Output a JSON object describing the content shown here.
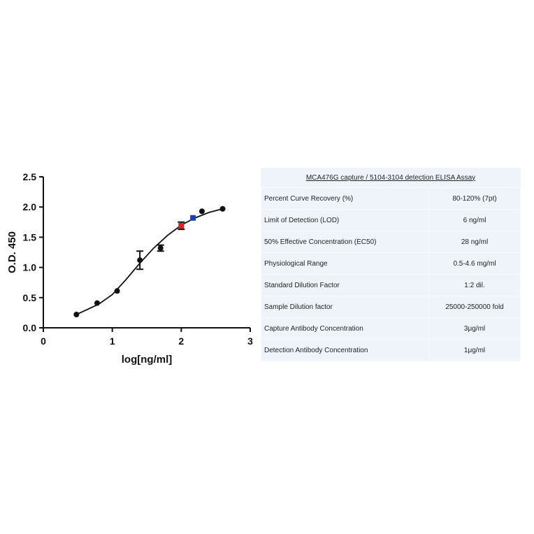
{
  "chart_data": {
    "type": "scatter",
    "xlabel": "log[ng/ml]",
    "ylabel": "O.D. 450",
    "xlim": [
      0,
      3
    ],
    "xticks": [
      0,
      1,
      2,
      3
    ],
    "ylim": [
      0,
      2.5
    ],
    "yticks": [
      {
        "value": 0,
        "label": "0.0"
      },
      0.5,
      {
        "value": 1,
        "label": "1.0"
      },
      1.5,
      {
        "value": 2,
        "label": "2.0"
      },
      2.5
    ],
    "series": [
      {
        "type": "scatter",
        "x": [
          0.48,
          0.78,
          1.07,
          1.4,
          1.7,
          2.0,
          2.17,
          2.3,
          2.6
        ],
        "y": [
          0.22,
          0.41,
          0.61,
          1.12,
          1.32,
          1.69,
          1.82,
          1.93,
          1.97
        ],
        "errors": [
          null,
          null,
          null,
          0.15,
          0.05,
          0.06,
          null,
          null,
          null
        ],
        "colors": [
          "#111111",
          "#111111",
          "#111111",
          "#111111",
          "#111111",
          "#e02020",
          "#1a3fb0",
          "#111111",
          "#111111"
        ]
      },
      {
        "type": "line",
        "color": "#111111",
        "x": [
          0.48,
          0.8,
          1.0,
          1.2,
          1.4,
          1.6,
          1.8,
          2.0,
          2.2,
          2.4,
          2.6
        ],
        "y": [
          0.22,
          0.39,
          0.55,
          0.8,
          1.07,
          1.32,
          1.53,
          1.7,
          1.82,
          1.91,
          1.97
        ]
      }
    ]
  },
  "table": {
    "title": "MCA476G capture / 5104-3104 detection ELISA Assay",
    "rows": [
      [
        "Percent Curve Recovery (%)",
        "80-120% (7pt)"
      ],
      [
        "Limit of Detection (LOD)",
        "6 ng/ml"
      ],
      [
        "50% Effective Concentration (EC50)",
        "28 ng/ml"
      ],
      [
        "Physiological Range",
        "0.5-4.6 mg/ml"
      ],
      [
        "Standard Dilution Factor",
        "1:2 dil."
      ],
      [
        "Sample Dilution factor",
        "25000-250000 fold"
      ],
      [
        "Capture Antibody Concentration",
        "3μg/ml"
      ],
      [
        "Detection Antibody Concentration",
        "1μg/ml"
      ]
    ]
  }
}
